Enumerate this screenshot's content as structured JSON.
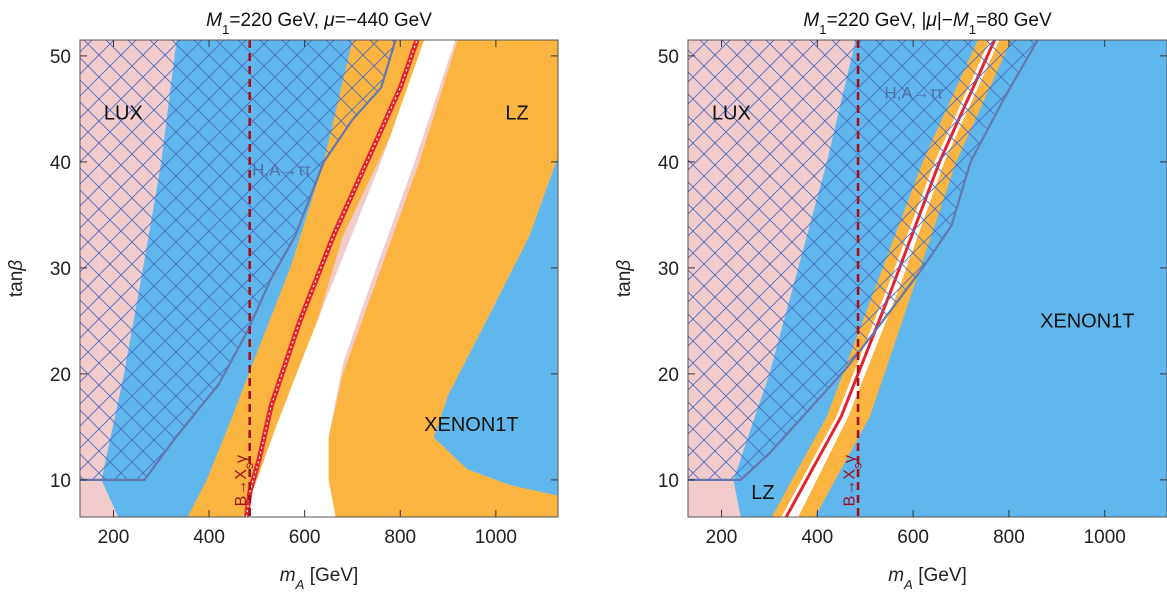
{
  "colors": {
    "lux": "#f2cccd",
    "xenon1t": "#5fb7ee",
    "lz": "#fbb43f",
    "allowed": "#ffffff",
    "relic_line": "#e3232d",
    "hatch": "#4a6fc0",
    "tau_boundary": "#6478b0",
    "bsgamma": "#a50f1a"
  },
  "chart_data": [
    {
      "id": "left",
      "type": "area",
      "title_parts": [
        {
          "t": "M",
          "i": true
        },
        {
          "t": "1",
          "sub": true
        },
        {
          "t": "=220 GeV, "
        },
        {
          "t": "μ",
          "i": true
        },
        {
          "t": "=−440 GeV"
        }
      ],
      "xlabel_parts": [
        {
          "t": "m",
          "i": true
        },
        {
          "t": "A",
          "sub": true,
          "i": true
        },
        {
          "t": " [GeV]"
        }
      ],
      "ylabel_parts": [
        {
          "t": "tan"
        },
        {
          "t": "β",
          "i": true
        }
      ],
      "xlim": [
        130,
        1130
      ],
      "ylim": [
        6.5,
        51.5
      ],
      "xticks": [
        200,
        400,
        600,
        800,
        1000
      ],
      "yticks": [
        10,
        20,
        30,
        40,
        50
      ],
      "xtick_labels": [
        "200",
        "400",
        "600",
        "800",
        "1000"
      ],
      "ytick_labels": [
        "10",
        "20",
        "30",
        "40",
        "50"
      ],
      "regions": [
        {
          "name": "XENON1T",
          "color_key": "xenon1t",
          "points": [
            [
              210,
              6.5
            ],
            [
              175,
              10
            ],
            [
              222,
              20
            ],
            [
              262,
              30
            ],
            [
              300,
              40
            ],
            [
              332,
              51.5
            ],
            [
              760,
              51.5
            ],
            [
              700,
              40
            ],
            [
              635,
              30
            ],
            [
              580,
              20
            ],
            [
              535,
              10
            ],
            [
              565,
              6.5
            ]
          ]
        },
        {
          "name": "XENON1T",
          "color_key": "xenon1t",
          "points": [
            [
              1130,
              8.5
            ],
            [
              1030,
              9.5
            ],
            [
              940,
              11
            ],
            [
              870,
              14
            ],
            [
              900,
              18
            ],
            [
              980,
              25
            ],
            [
              1070,
              33
            ],
            [
              1130,
              40.5
            ]
          ]
        },
        {
          "name": "LZ",
          "color_key": "lz",
          "points": [
            [
              355,
              6.5
            ],
            [
              395,
              10
            ],
            [
              440,
              15
            ],
            [
              500,
              22
            ],
            [
              570,
              30
            ],
            [
              640,
              40
            ],
            [
              700,
              51.5
            ],
            [
              875,
              51.5
            ],
            [
              680,
              33
            ],
            [
              620,
              24
            ],
            [
              600,
              18
            ],
            [
              600,
              13
            ],
            [
              605,
              10
            ],
            [
              610,
              6.5
            ]
          ]
        },
        {
          "name": "LZ",
          "color_key": "lz",
          "points": [
            [
              920,
              51.5
            ],
            [
              1130,
              51.5
            ],
            [
              1130,
              40.5
            ],
            [
              1070,
              33
            ],
            [
              980,
              25
            ],
            [
              900,
              18
            ],
            [
              870,
              14
            ],
            [
              940,
              11
            ],
            [
              1030,
              9.5
            ],
            [
              1130,
              8.5
            ],
            [
              1130,
              6.5
            ],
            [
              660,
              6.5
            ],
            [
              645,
              10
            ],
            [
              650,
              14
            ],
            [
              680,
              20
            ],
            [
              760,
              30
            ],
            [
              840,
              40
            ]
          ]
        }
      ],
      "relic_line": [
        [
          478,
          6.5
        ],
        [
          486,
          9
        ],
        [
          505,
          12
        ],
        [
          530,
          17
        ],
        [
          590,
          25
        ],
        [
          660,
          33
        ],
        [
          740,
          41
        ],
        [
          800,
          47
        ],
        [
          835,
          51.5
        ]
      ],
      "tau_boundary": [
        [
          130,
          10
        ],
        [
          265,
          10
        ],
        [
          330,
          14
        ],
        [
          420,
          19
        ],
        [
          480,
          24
        ],
        [
          530,
          29
        ],
        [
          580,
          33
        ],
        [
          640,
          40
        ],
        [
          700,
          44
        ],
        [
          760,
          47
        ],
        [
          790,
          51.5
        ]
      ],
      "bsgamma_x": 485,
      "labels": [
        {
          "key": "lux",
          "text": "LUX",
          "x": 180,
          "y": 44
        },
        {
          "key": "lz",
          "text": "LZ",
          "x": 1020,
          "y": 44
        },
        {
          "key": "xenon1t",
          "text": "XENON1T",
          "x": 850,
          "y": 14.6
        },
        {
          "key": "tau",
          "text": "H,A→ττ",
          "x": 490,
          "y": 38.7
        },
        {
          "key": "bsg",
          "text": "B→X",
          "sub": "s",
          "tail": "γ",
          "x": 465,
          "y": 7.5
        }
      ]
    },
    {
      "id": "right",
      "type": "area",
      "title_parts": [
        {
          "t": "M",
          "i": true
        },
        {
          "t": "1",
          "sub": true
        },
        {
          "t": "=220 GeV, |"
        },
        {
          "t": "μ",
          "i": true
        },
        {
          "t": "|−"
        },
        {
          "t": "M",
          "i": true
        },
        {
          "t": "1",
          "sub": true
        },
        {
          "t": "=80 GeV"
        }
      ],
      "xlabel_parts": [
        {
          "t": "m",
          "i": true
        },
        {
          "t": "A",
          "sub": true,
          "i": true
        },
        {
          "t": " [GeV]"
        }
      ],
      "ylabel_parts": [
        {
          "t": "tan"
        },
        {
          "t": "β",
          "i": true
        }
      ],
      "xlim": [
        130,
        1130
      ],
      "ylim": [
        6.5,
        51.5
      ],
      "xticks": [
        200,
        400,
        600,
        800,
        1000
      ],
      "yticks": [
        10,
        20,
        30,
        40,
        50
      ],
      "xtick_labels": [
        "200",
        "400",
        "600",
        "800",
        "1000"
      ],
      "ytick_labels": [
        "10",
        "20",
        "30",
        "40",
        "50"
      ],
      "regions": [
        {
          "name": "XENON1T",
          "color_key": "xenon1t",
          "points": [
            [
              240,
              6.5
            ],
            [
              225,
              10
            ],
            [
              300,
              20
            ],
            [
              360,
              30
            ],
            [
              420,
              40
            ],
            [
              480,
              51.5
            ],
            [
              1130,
              51.5
            ],
            [
              1130,
              6.5
            ]
          ]
        },
        {
          "name": "LZ",
          "color_key": "lz",
          "points": [
            [
              305,
              6.5
            ],
            [
              420,
              16
            ],
            [
              520,
              28
            ],
            [
              620,
              40
            ],
            [
              735,
              51.5
            ],
            [
              805,
              51.5
            ],
            [
              690,
              40
            ],
            [
              600,
              28
            ],
            [
              510,
              16
            ],
            [
              395,
              6.5
            ]
          ]
        }
      ],
      "allowed_band": [
        [
          325,
          6.5
        ],
        [
          440,
          16
        ],
        [
          545,
          28
        ],
        [
          645,
          40
        ],
        [
          760,
          51.5
        ],
        [
          780,
          51.5
        ],
        [
          665,
          40
        ],
        [
          570,
          28
        ],
        [
          465,
          16
        ],
        [
          360,
          6.5
        ]
      ],
      "relic_line": [
        [
          335,
          6.5
        ],
        [
          450,
          16
        ],
        [
          555,
          28
        ],
        [
          655,
          40
        ],
        [
          770,
          51.5
        ]
      ],
      "tau_boundary": [
        [
          130,
          10
        ],
        [
          240,
          10
        ],
        [
          300,
          12.5
        ],
        [
          360,
          15.5
        ],
        [
          410,
          18
        ],
        [
          460,
          20.5
        ],
        [
          520,
          24
        ],
        [
          570,
          27
        ],
        [
          620,
          30
        ],
        [
          680,
          34
        ],
        [
          720,
          40
        ],
        [
          790,
          46
        ],
        [
          860,
          51.5
        ]
      ],
      "bsgamma_x": 485,
      "labels": [
        {
          "key": "lux",
          "text": "LUX",
          "x": 180,
          "y": 44
        },
        {
          "key": "lz",
          "text": "LZ",
          "x": 262,
          "y": 8.2
        },
        {
          "key": "xenon1t",
          "text": "XENON1T",
          "x": 865,
          "y": 24.4
        },
        {
          "key": "tau",
          "text": "H,A→ττ",
          "x": 540,
          "y": 46
        },
        {
          "key": "bsg",
          "text": "B→X",
          "sub": "s",
          "tail": "γ",
          "x": 465,
          "y": 7.5
        }
      ]
    }
  ]
}
